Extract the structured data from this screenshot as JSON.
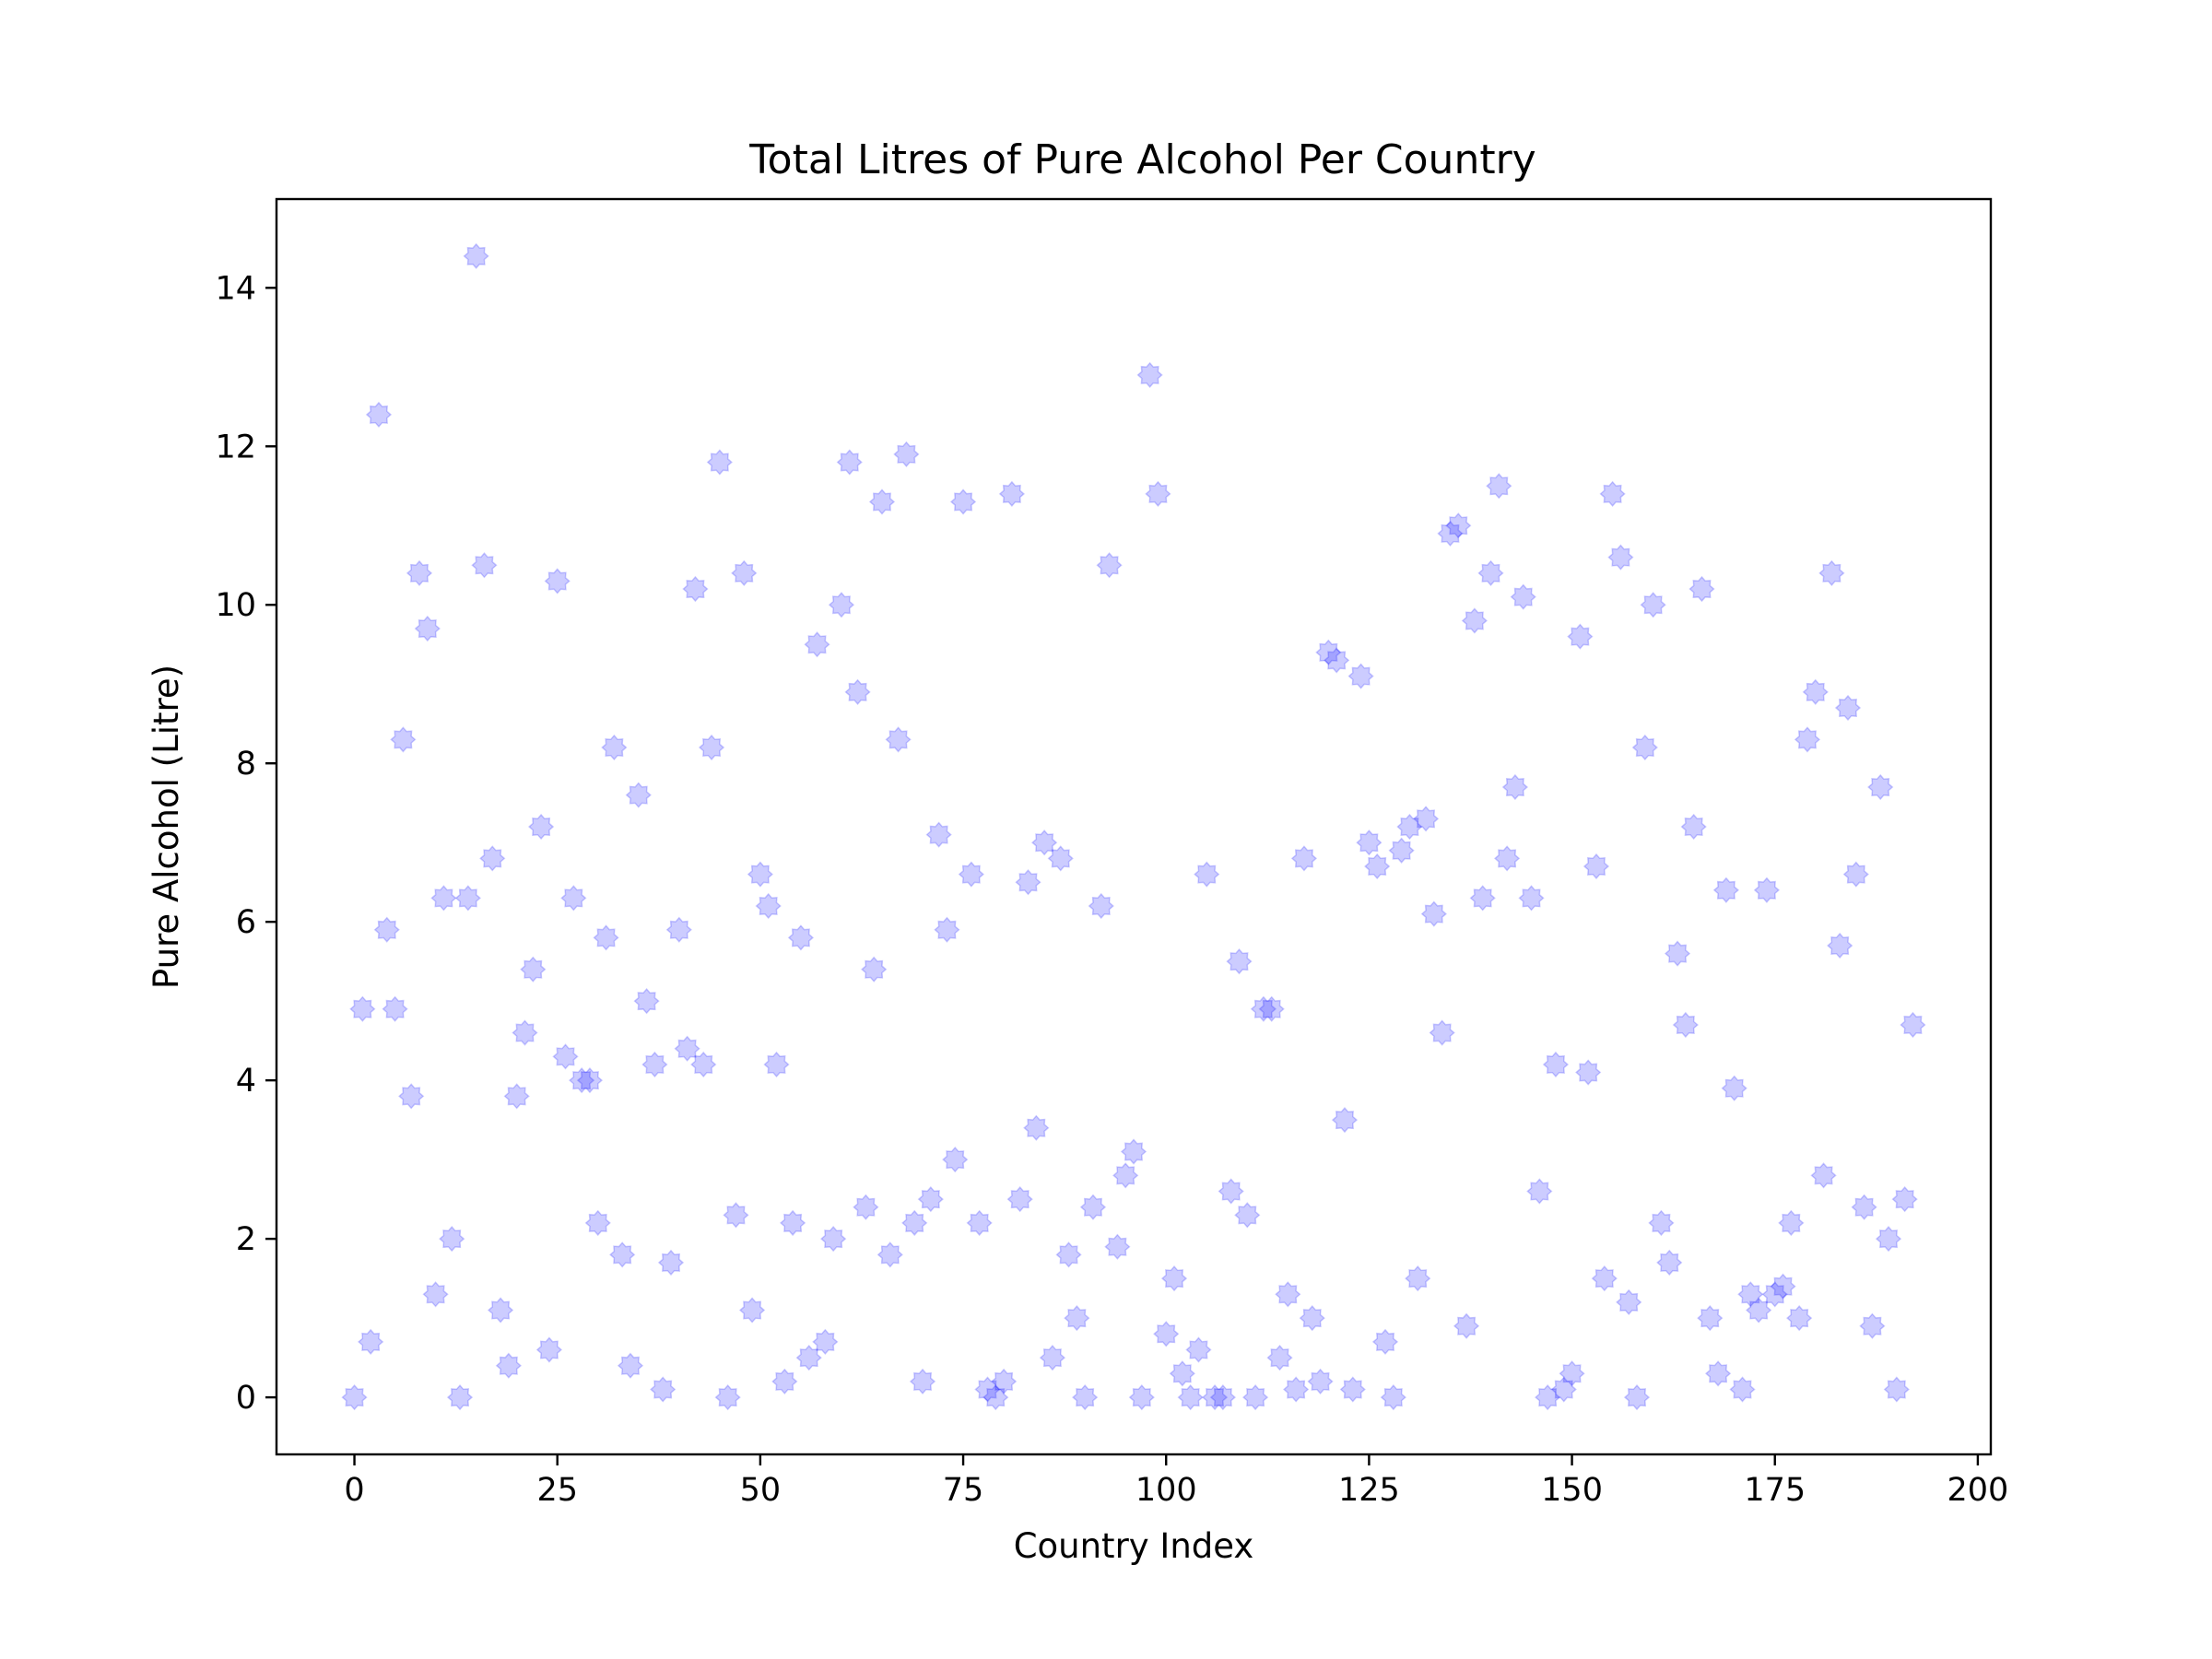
{
  "chart_data": {
    "type": "scatter",
    "title": "Total Litres of Pure Alcohol Per Country",
    "xlabel": "Country Index",
    "ylabel": "Pure Alcohol (Litre)",
    "xlim": [
      -9.6,
      201.6
    ],
    "ylim": [
      -0.72,
      15.12
    ],
    "xticks": [
      "0",
      "25",
      "50",
      "75",
      "100",
      "125",
      "150",
      "175",
      "200"
    ],
    "yticks": [
      "0",
      "2",
      "4",
      "6",
      "8",
      "10",
      "12",
      "14"
    ],
    "grid": false,
    "marker_color": "#0000ff",
    "marker_opacity": 0.2,
    "marker": "star-burst",
    "series": [
      {
        "x": [
          0,
          1,
          2,
          3,
          4,
          5,
          6,
          7,
          8,
          9,
          10,
          11,
          12,
          13,
          14,
          15,
          16,
          17,
          18,
          19,
          20,
          21,
          22,
          23,
          24,
          25,
          26,
          27,
          28,
          29,
          30,
          31,
          32,
          33,
          34,
          35,
          36,
          37,
          38,
          39,
          40,
          41,
          42,
          43,
          44,
          45,
          46,
          47,
          48,
          49,
          50,
          51,
          52,
          53,
          54,
          55,
          56,
          57,
          58,
          59,
          60,
          61,
          62,
          63,
          64,
          65,
          66,
          67,
          68,
          69,
          70,
          71,
          72,
          73,
          74,
          75,
          76,
          77,
          78,
          79,
          80,
          81,
          82,
          83,
          84,
          85,
          86,
          87,
          88,
          89,
          90,
          91,
          92,
          93,
          94,
          95,
          96,
          97,
          98,
          99,
          100,
          101,
          102,
          103,
          104,
          105,
          106,
          107,
          108,
          109,
          110,
          111,
          112,
          113,
          114,
          115,
          116,
          117,
          118,
          119,
          120,
          121,
          122,
          123,
          124,
          125,
          126,
          127,
          128,
          129,
          130,
          131,
          132,
          133,
          134,
          135,
          136,
          137,
          138,
          139,
          140,
          141,
          142,
          143,
          144,
          145,
          146,
          147,
          148,
          149,
          150,
          151,
          152,
          153,
          154,
          155,
          156,
          157,
          158,
          159,
          160,
          161,
          162,
          163,
          164,
          165,
          166,
          167,
          168,
          169,
          170,
          171,
          172,
          173,
          174,
          175,
          176,
          177,
          178,
          179,
          180,
          181,
          182,
          183,
          184,
          185,
          186,
          187,
          188,
          189,
          190,
          191,
          192
        ],
        "y": [
          0,
          4.9,
          0.7,
          12.4,
          5.9,
          4.9,
          8.3,
          3.8,
          10.4,
          9.7,
          1.3,
          6.3,
          2,
          0,
          6.3,
          14.4,
          10.5,
          6.8,
          1.1,
          0.4,
          3.8,
          4.6,
          5.4,
          7.2,
          0.6,
          10.3,
          4.3,
          6.3,
          4,
          4,
          2.2,
          5.8,
          8.2,
          1.8,
          0.4,
          7.6,
          5,
          4.2,
          0.1,
          1.7,
          5.9,
          4.4,
          10.2,
          4.2,
          8.2,
          11.8,
          0,
          2.3,
          10.4,
          1.1,
          6.6,
          6.2,
          4.2,
          0.2,
          2.2,
          5.8,
          0.5,
          9.5,
          0.7,
          2,
          10,
          11.8,
          8.9,
          2.4,
          5.4,
          11.3,
          1.8,
          8.3,
          11.9,
          2.2,
          0.2,
          2.5,
          7.1,
          5.9,
          3,
          11.3,
          6.6,
          2.2,
          0.1,
          0,
          0.2,
          11.4,
          2.5,
          6.5,
          3.4,
          7,
          0.5,
          6.8,
          1.8,
          1,
          0,
          2.4,
          6.2,
          10.5,
          1.9,
          2.8,
          3.1,
          0,
          12.9,
          11.4,
          0.8,
          1.5,
          0.3,
          0,
          0.6,
          6.6,
          0,
          0,
          2.6,
          5.5,
          2.3,
          0,
          4.9,
          4.9,
          0.5,
          1.3,
          0.1,
          6.8,
          1,
          0.2,
          9.4,
          9.3,
          3.5,
          0.1,
          9.1,
          7,
          6.7,
          0.7,
          0,
          6.9,
          7.2,
          1.5,
          7.3,
          6.1,
          4.6,
          10.9,
          11,
          0.9,
          9.8,
          6.3,
          10.4,
          11.5,
          6.8,
          7.7,
          10.1,
          6.3,
          2.6,
          0,
          4.2,
          0.1,
          0.3,
          9.6,
          4.1,
          6.7,
          1.5,
          11.4,
          10.6,
          1.2,
          0,
          8.2,
          10,
          2.2,
          1.7,
          5.6,
          4.7,
          7.2,
          10.2,
          1,
          0.3,
          6.4,
          3.9,
          0.1,
          1.3,
          1.1,
          6.4,
          1.3,
          1.4,
          2.2,
          1,
          8.3,
          8.9,
          2.8,
          10.4,
          5.7,
          8.7,
          6.6,
          2.4,
          0.9,
          7.7,
          2,
          0.1,
          2.5,
          4.7
        ]
      }
    ]
  }
}
